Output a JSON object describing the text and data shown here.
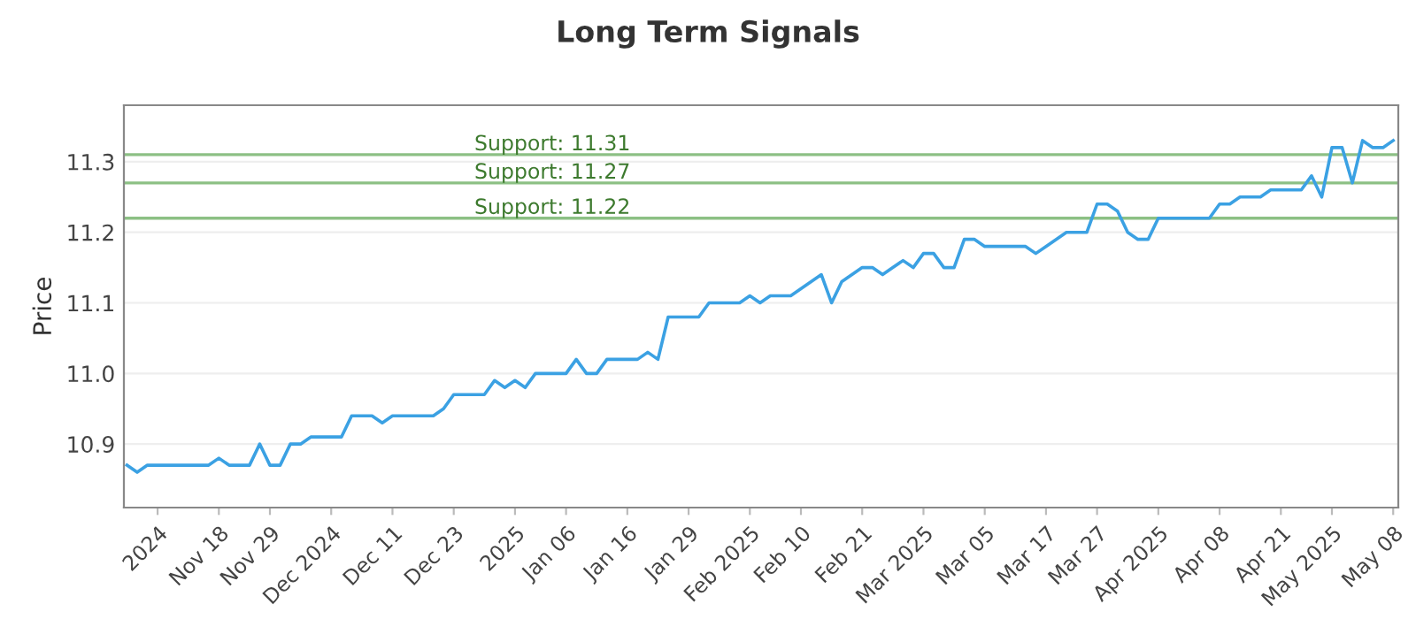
{
  "chart_data": {
    "type": "line",
    "title": "Long Term Signals",
    "ylabel": "Price",
    "categories": [
      null,
      null,
      null,
      "2024",
      null,
      null,
      null,
      null,
      null,
      "Nov 18",
      null,
      null,
      null,
      null,
      "Nov 29",
      null,
      null,
      null,
      null,
      null,
      "Dec 2024",
      null,
      null,
      null,
      null,
      null,
      "Dec 11",
      null,
      null,
      null,
      null,
      null,
      "Dec 23",
      null,
      null,
      null,
      null,
      null,
      "2025",
      null,
      null,
      null,
      null,
      "Jan 06",
      null,
      null,
      null,
      null,
      null,
      "Jan 16",
      null,
      null,
      null,
      null,
      null,
      "Jan 29",
      null,
      null,
      null,
      null,
      null,
      "Feb 2025",
      null,
      null,
      null,
      null,
      "Feb 10",
      null,
      null,
      null,
      null,
      null,
      "Feb 21",
      null,
      null,
      null,
      null,
      null,
      "Mar 2025",
      null,
      null,
      null,
      null,
      null,
      "Mar 05",
      null,
      null,
      null,
      null,
      null,
      "Mar 17",
      null,
      null,
      null,
      null,
      "Mar 27",
      null,
      null,
      null,
      null,
      null,
      "Apr 2025",
      null,
      null,
      null,
      null,
      null,
      "Apr 08",
      null,
      null,
      null,
      null,
      null,
      "Apr 21",
      null,
      null,
      null,
      null,
      "May 2025",
      null,
      null,
      null,
      null,
      null,
      "May 08"
    ],
    "series": [
      {
        "color": "#3ba1e3",
        "values": [
          10.87,
          10.86,
          10.87,
          10.87,
          10.87,
          10.87,
          10.87,
          10.87,
          10.87,
          10.88,
          10.87,
          10.87,
          10.87,
          10.9,
          10.87,
          10.87,
          10.9,
          10.9,
          10.91,
          10.91,
          10.91,
          10.91,
          10.94,
          10.94,
          10.94,
          10.93,
          10.94,
          10.94,
          10.94,
          10.94,
          10.94,
          10.95,
          10.97,
          10.97,
          10.97,
          10.97,
          10.99,
          10.98,
          10.99,
          10.98,
          11.0,
          11.0,
          11.0,
          11.0,
          11.02,
          11.0,
          11.0,
          11.02,
          11.02,
          11.02,
          11.02,
          11.03,
          11.02,
          11.08,
          11.08,
          11.08,
          11.08,
          11.1,
          11.1,
          11.1,
          11.1,
          11.11,
          11.1,
          11.11,
          11.11,
          11.11,
          11.12,
          11.13,
          11.14,
          11.1,
          11.13,
          11.14,
          11.15,
          11.15,
          11.14,
          11.15,
          11.16,
          11.15,
          11.17,
          11.17,
          11.15,
          11.15,
          11.19,
          11.19,
          11.18,
          11.18,
          11.18,
          11.18,
          11.18,
          11.17,
          11.18,
          11.19,
          11.2,
          11.2,
          11.2,
          11.24,
          11.24,
          11.23,
          11.2,
          11.19,
          11.19,
          11.22,
          11.22,
          11.22,
          11.22,
          11.22,
          11.22,
          11.24,
          11.24,
          11.25,
          11.25,
          11.25,
          11.26,
          11.26,
          11.26,
          11.26,
          11.28,
          11.25,
          11.32,
          11.32,
          11.27,
          11.33,
          11.32,
          11.32,
          11.33
        ]
      }
    ],
    "ylim": [
      10.81,
      11.38
    ],
    "yticks": [
      10.9,
      {
        "value": 11.0,
        "label": "11.0"
      },
      11.1,
      11.2,
      11.3
    ],
    "grid": "y",
    "ref_lines": [
      {
        "axis": "y",
        "value": 11.31,
        "label": "Support: 11.31",
        "color": "#8cc084"
      },
      {
        "axis": "y",
        "value": 11.27,
        "label": "Support: 11.27",
        "color": "#8cc084"
      },
      {
        "axis": "y",
        "value": 11.22,
        "label": "Support: 11.22",
        "color": "#8cc084"
      }
    ]
  }
}
